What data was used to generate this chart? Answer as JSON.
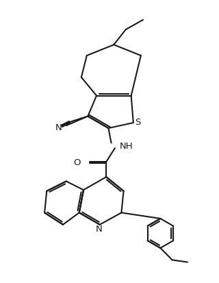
{
  "bg_color": "#ffffff",
  "line_color": "#1a1a1a",
  "line_width": 1.5,
  "fig_width": 3.2,
  "fig_height": 4.14,
  "dpi": 100,
  "xlim": [
    0,
    10
  ],
  "ylim": [
    0,
    13
  ]
}
